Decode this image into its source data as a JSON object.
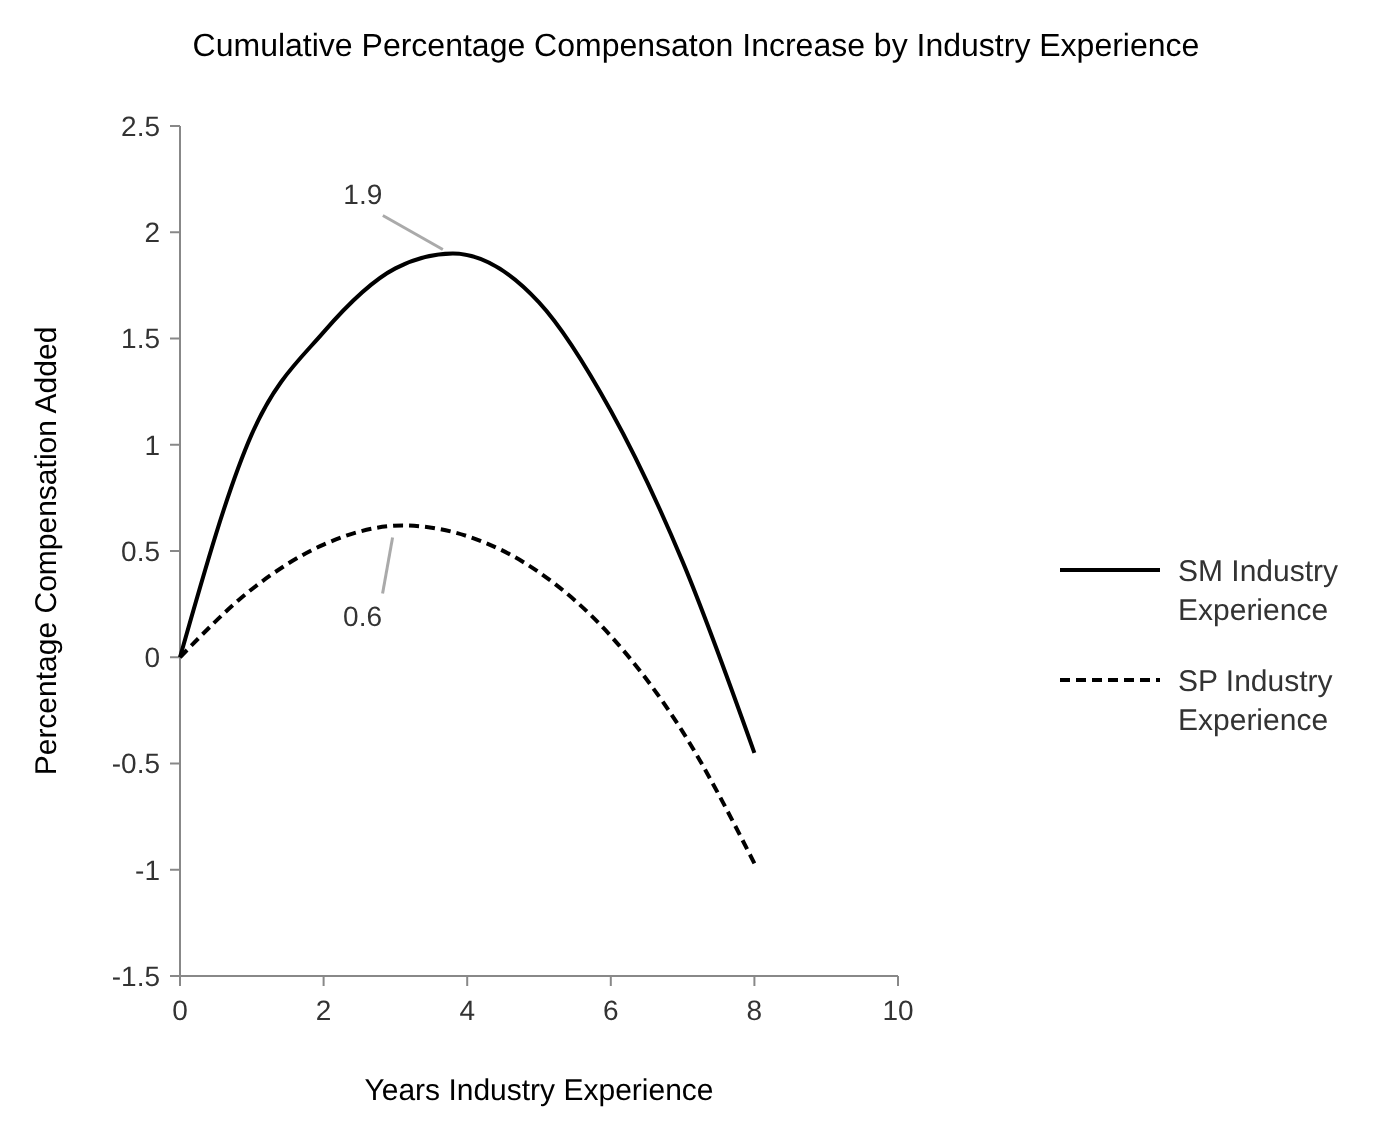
{
  "chart_data": {
    "type": "line",
    "title": "Cumulative Percentage Compensaton Increase by Industry Experience",
    "xlabel": "Years Industry Experience",
    "ylabel": "Percentage Compensation Added",
    "xlim": [
      0,
      10
    ],
    "xticks": [
      0,
      2,
      4,
      6,
      8,
      10
    ],
    "ylim": [
      -1.5,
      2.5
    ],
    "yticks": [
      -1.5,
      -1,
      -0.5,
      0,
      0.5,
      1,
      1.5,
      2,
      2.5
    ],
    "legend": "right",
    "grid": false,
    "series": [
      {
        "name": "SM Industry Experience",
        "color": "#000000",
        "line_style": "solid",
        "x": [
          0,
          1,
          2,
          3,
          3.8,
          5,
          6,
          7,
          8
        ],
        "values": [
          0,
          1.05,
          1.53,
          1.83,
          1.9,
          1.67,
          1.16,
          0.45,
          -0.45
        ]
      },
      {
        "name": "SP Industry Experience",
        "color": "#000000",
        "line_style": "dashed",
        "x": [
          0,
          1,
          2,
          3.1,
          4,
          5,
          6,
          7,
          8
        ],
        "values": [
          0,
          0.32,
          0.53,
          0.62,
          0.57,
          0.4,
          0.1,
          -0.35,
          -0.97
        ]
      }
    ],
    "annotations": [
      {
        "text": "1.9",
        "x": 3.8,
        "y": 1.9
      },
      {
        "text": "0.6",
        "x": 3.1,
        "y": 0.62
      }
    ]
  }
}
